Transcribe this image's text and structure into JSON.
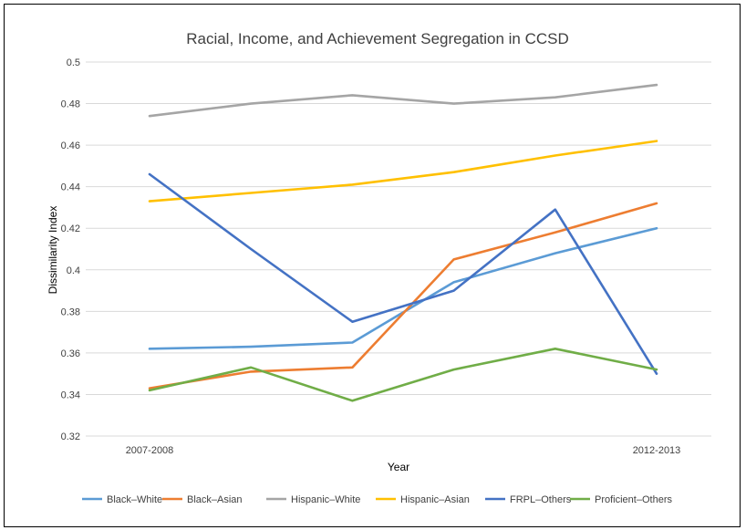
{
  "chart_data": {
    "type": "line",
    "title": "Racial, Income, and Achievement Segregation in CCSD",
    "xlabel": "Year",
    "ylabel": "Dissimilarity Index",
    "x_tick_labels": [
      "2007-2008",
      "",
      "",
      "",
      "",
      "2012-2013"
    ],
    "ylim": [
      0.32,
      0.5
    ],
    "y_ticks": [
      "0.32",
      "0.34",
      "0.36",
      "0.38",
      "0.4",
      "0.42",
      "0.44",
      "0.46",
      "0.48",
      "0.5"
    ],
    "grid": true,
    "legend_position": "bottom",
    "series": [
      {
        "name": "Black–White",
        "color": "#5b9bd5",
        "values": [
          0.362,
          0.363,
          0.365,
          0.394,
          0.408,
          0.42
        ]
      },
      {
        "name": "Black–Asian",
        "color": "#ed7d31",
        "values": [
          0.343,
          0.351,
          0.353,
          0.405,
          0.418,
          0.432
        ]
      },
      {
        "name": "Hispanic–White",
        "color": "#a5a5a5",
        "values": [
          0.474,
          0.48,
          0.484,
          0.48,
          0.483,
          0.489
        ]
      },
      {
        "name": "Hispanic–Asian",
        "color": "#ffc000",
        "values": [
          0.433,
          0.437,
          0.441,
          0.447,
          0.455,
          0.462
        ]
      },
      {
        "name": "FRPL–Others",
        "color": "#4472c4",
        "values": [
          0.446,
          0.41,
          0.375,
          0.39,
          0.429,
          0.35
        ]
      },
      {
        "name": "Proficient–Others",
        "color": "#70ad47",
        "values": [
          0.342,
          0.353,
          0.337,
          0.352,
          0.362,
          0.352
        ]
      }
    ]
  }
}
